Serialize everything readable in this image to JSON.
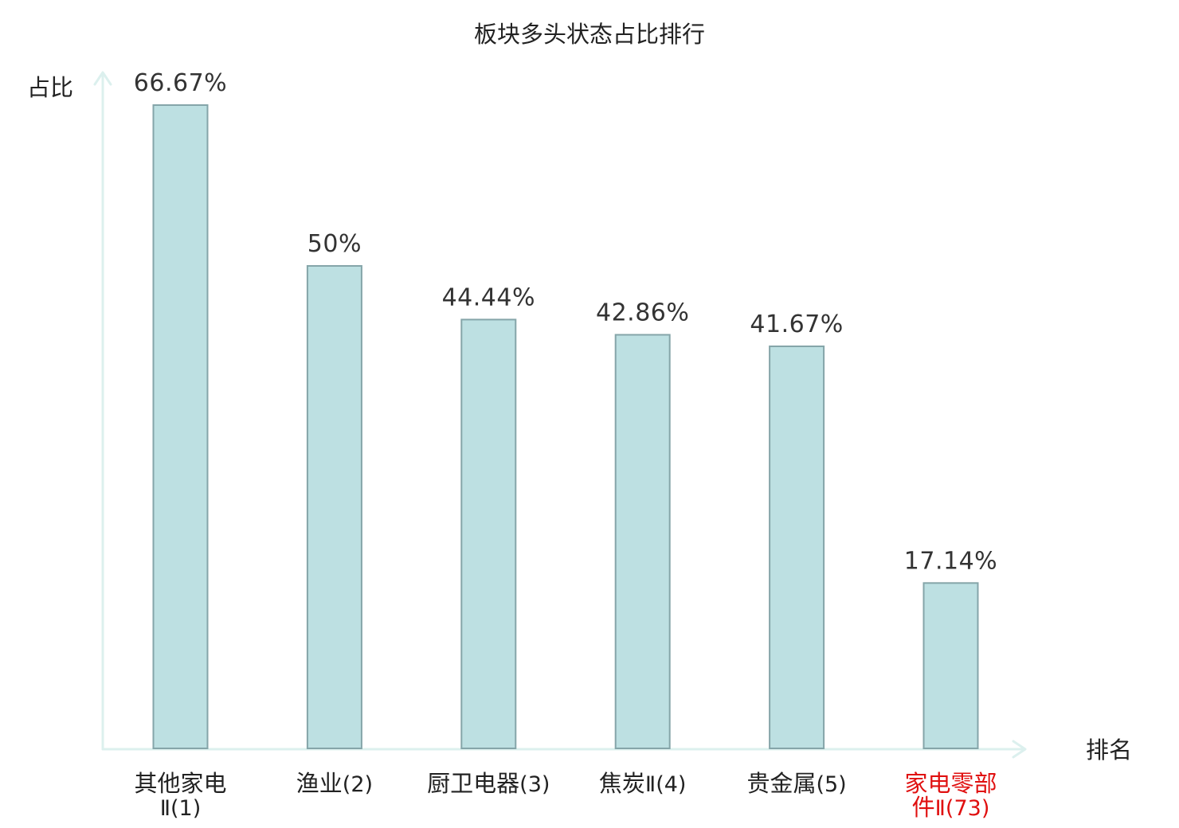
{
  "chart_data": {
    "type": "bar",
    "title": "板块多头状态占比排行",
    "ylabel": "占比",
    "xlabel": "排名",
    "ylim": [
      0,
      70
    ],
    "grid": false,
    "legend": "none",
    "unit": "%",
    "categories": [
      {
        "name": "其他家电Ⅱ",
        "rank": "(1)",
        "value": 66.67,
        "value_label": "66.67%",
        "highlight": false
      },
      {
        "name": "渔业",
        "rank": "(2)",
        "value": 50,
        "value_label": "50%",
        "highlight": false
      },
      {
        "name": "厨卫电器",
        "rank": "(3)",
        "value": 44.44,
        "value_label": "44.44%",
        "highlight": false
      },
      {
        "name": "焦炭Ⅱ",
        "rank": "(4)",
        "value": 42.86,
        "value_label": "42.86%",
        "highlight": false
      },
      {
        "name": "贵金属",
        "rank": "(5)",
        "value": 41.67,
        "value_label": "41.67%",
        "highlight": false
      },
      {
        "name": "家电零部件Ⅱ",
        "rank": "(73)",
        "value": 17.14,
        "value_label": "17.14%",
        "highlight": true
      }
    ],
    "colors": {
      "bar_fill": "#bde0e2",
      "bar_stroke": "#85a5a9",
      "axis": "#dcf0ee",
      "label": "#222222",
      "value_label": "#333333",
      "highlight": "#e01010"
    }
  }
}
